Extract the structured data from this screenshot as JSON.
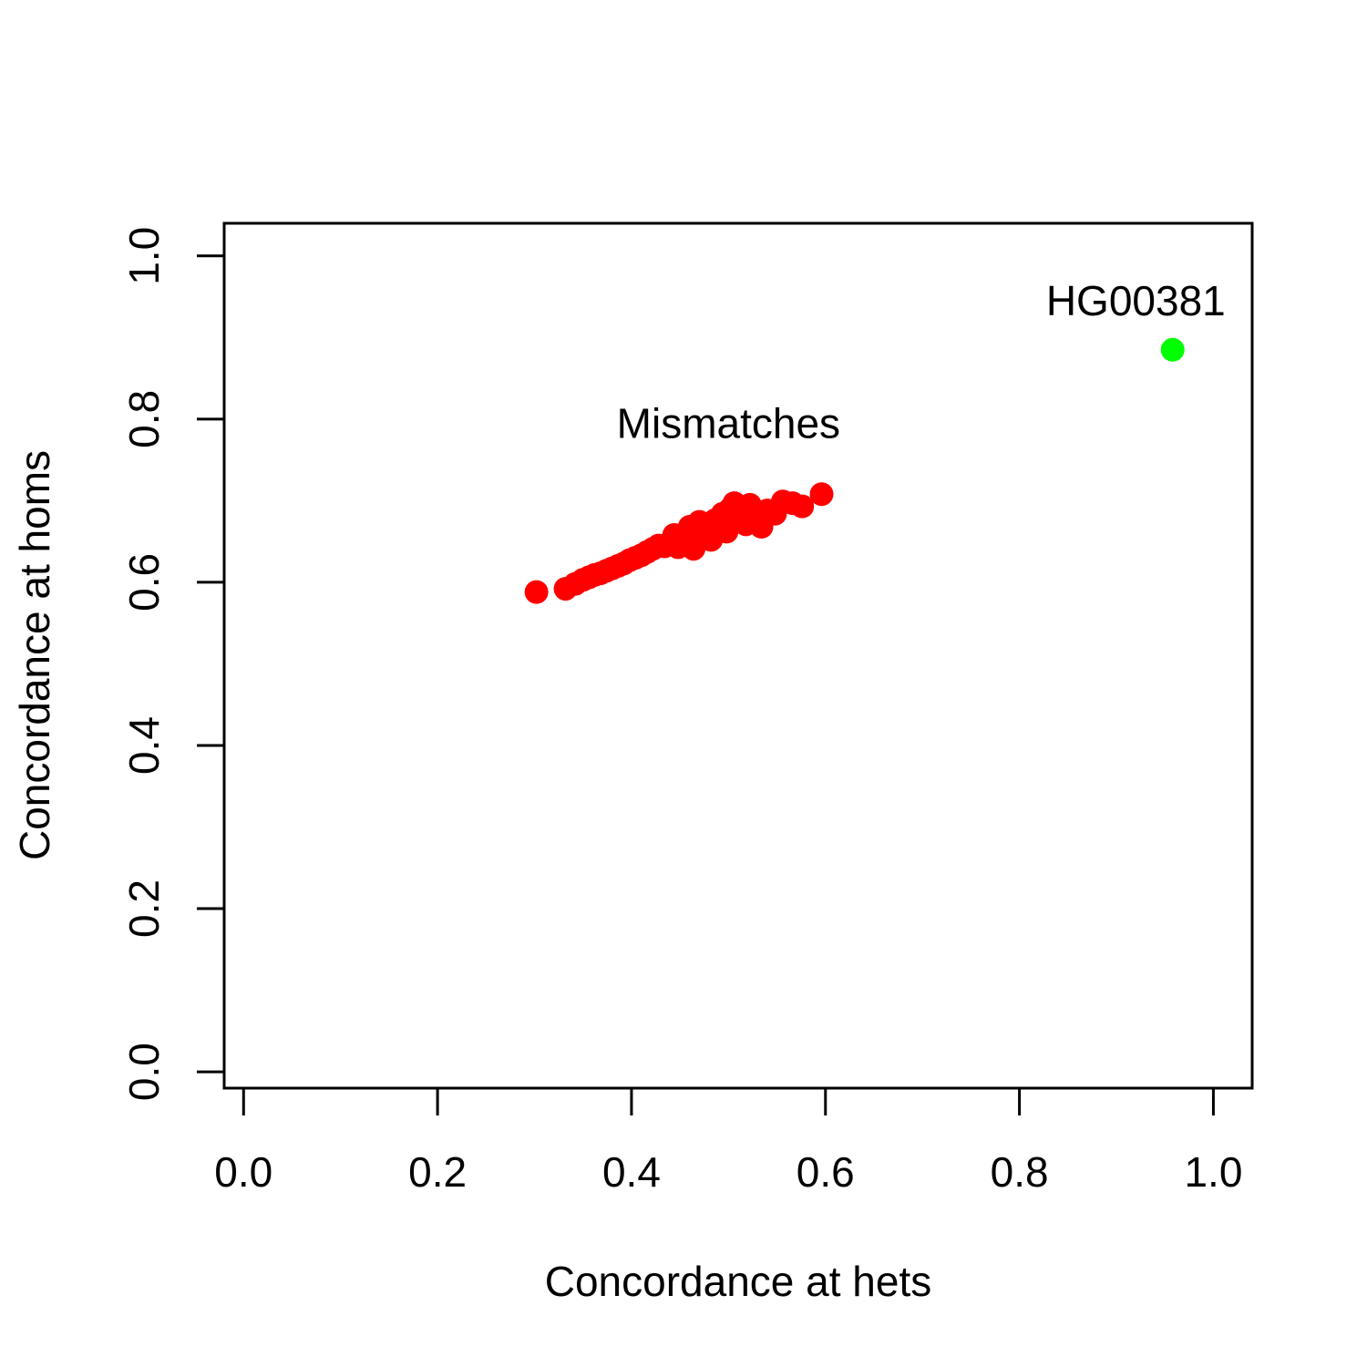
{
  "chart_data": {
    "type": "scatter",
    "xlabel": "Concordance at hets",
    "ylabel": "Concordance at homs",
    "xlim": [
      -0.02,
      1.04
    ],
    "ylim": [
      -0.02,
      1.04
    ],
    "x_ticks": [
      0.0,
      0.2,
      0.4,
      0.6,
      0.8,
      1.0
    ],
    "y_ticks": [
      0.0,
      0.2,
      0.4,
      0.6,
      0.8,
      1.0
    ],
    "x_tick_labels": [
      "0.0",
      "0.2",
      "0.4",
      "0.6",
      "0.8",
      "1.0"
    ],
    "y_tick_labels": [
      "0.0",
      "0.2",
      "0.4",
      "0.6",
      "0.8",
      "1.0"
    ],
    "grid": false,
    "legend": "none",
    "series": [
      {
        "color": "#ff0000",
        "points": [
          [
            0.302,
            0.588
          ],
          [
            0.332,
            0.592
          ],
          [
            0.342,
            0.598
          ],
          [
            0.35,
            0.603
          ],
          [
            0.356,
            0.606
          ],
          [
            0.362,
            0.609
          ],
          [
            0.368,
            0.611
          ],
          [
            0.374,
            0.614
          ],
          [
            0.38,
            0.617
          ],
          [
            0.386,
            0.62
          ],
          [
            0.392,
            0.623
          ],
          [
            0.398,
            0.627
          ],
          [
            0.404,
            0.63
          ],
          [
            0.41,
            0.633
          ],
          [
            0.416,
            0.637
          ],
          [
            0.422,
            0.641
          ],
          [
            0.428,
            0.645
          ],
          [
            0.434,
            0.644
          ],
          [
            0.44,
            0.649
          ],
          [
            0.444,
            0.658
          ],
          [
            0.448,
            0.643
          ],
          [
            0.452,
            0.652
          ],
          [
            0.456,
            0.66
          ],
          [
            0.46,
            0.668
          ],
          [
            0.464,
            0.641
          ],
          [
            0.466,
            0.655
          ],
          [
            0.47,
            0.674
          ],
          [
            0.474,
            0.662
          ],
          [
            0.478,
            0.67
          ],
          [
            0.482,
            0.652
          ],
          [
            0.486,
            0.676
          ],
          [
            0.49,
            0.668
          ],
          [
            0.494,
            0.684
          ],
          [
            0.498,
            0.662
          ],
          [
            0.502,
            0.69
          ],
          [
            0.506,
            0.697
          ],
          [
            0.51,
            0.68
          ],
          [
            0.514,
            0.688
          ],
          [
            0.518,
            0.671
          ],
          [
            0.522,
            0.695
          ],
          [
            0.528,
            0.684
          ],
          [
            0.534,
            0.668
          ],
          [
            0.54,
            0.688
          ],
          [
            0.548,
            0.684
          ],
          [
            0.556,
            0.699
          ],
          [
            0.566,
            0.697
          ],
          [
            0.576,
            0.693
          ],
          [
            0.596,
            0.708
          ]
        ]
      },
      {
        "color": "#00ff00",
        "points": [
          [
            0.958,
            0.885
          ]
        ]
      }
    ],
    "annotations": [
      {
        "text": "Mismatches",
        "x": 0.5,
        "y": 0.795
      },
      {
        "text": "HG00381",
        "x": 0.92,
        "y": 0.945
      }
    ]
  }
}
